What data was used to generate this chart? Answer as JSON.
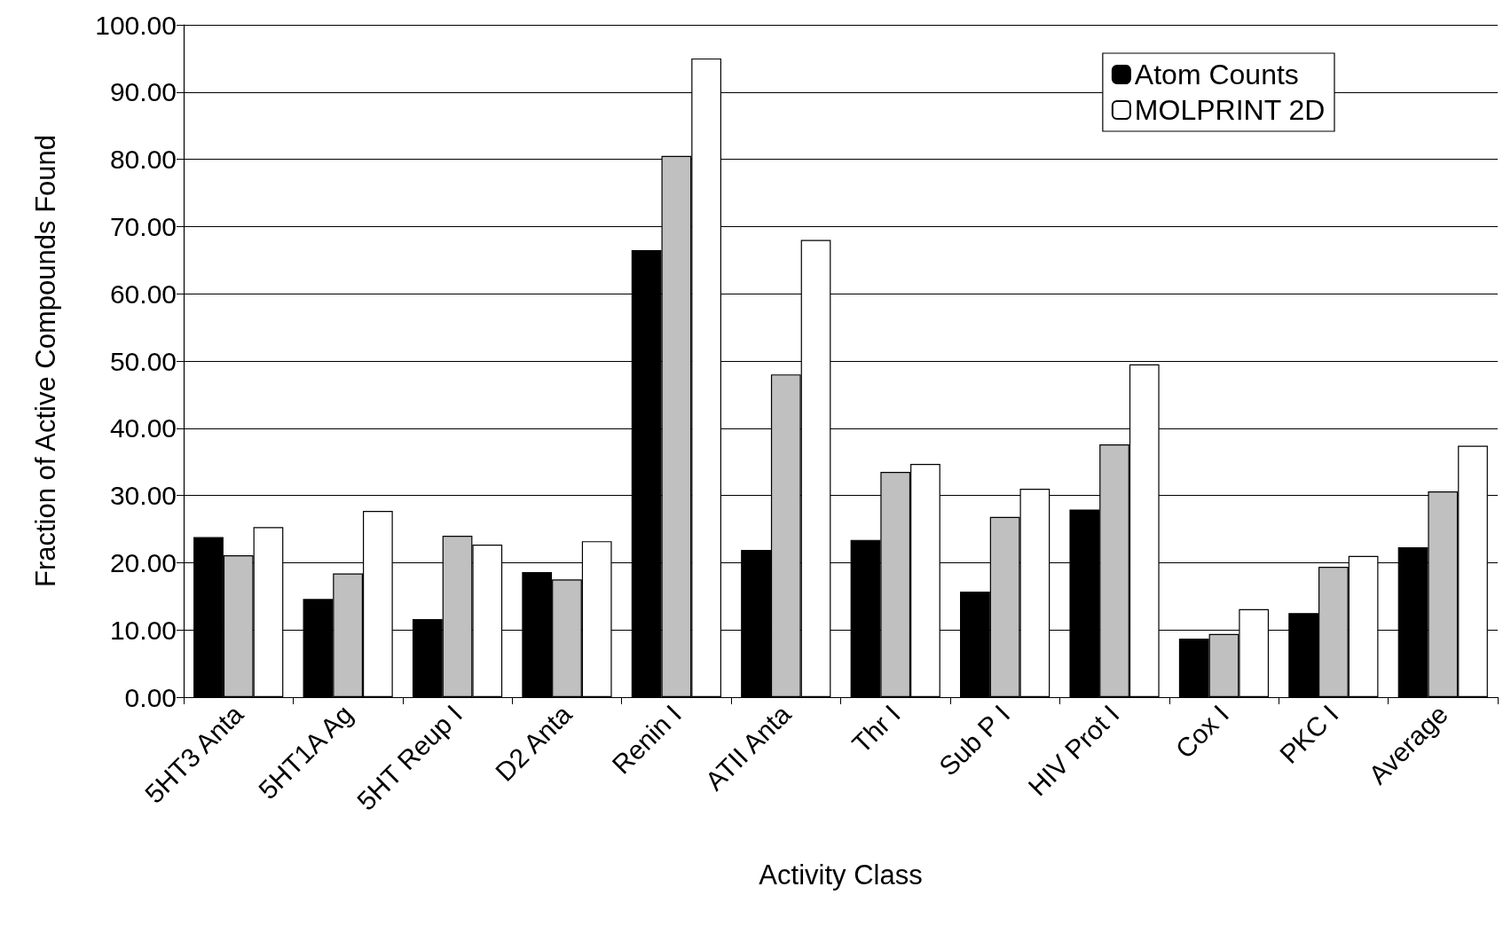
{
  "chart_data": {
    "type": "bar",
    "xlabel": "Activity Class",
    "ylabel": "Fraction of Active Compounds Found",
    "categories": [
      "5HT3 Anta",
      "5HT1A Ag",
      "5HT Reup I",
      "D2 Anta",
      "Renin I",
      "ATII Anta",
      "Thr I",
      "Sub P I",
      "HIV Prot I",
      "Cox I",
      "PKC I",
      "Average"
    ],
    "series": [
      {
        "name": "Atom Counts",
        "color": "#000000",
        "values": [
          23.8,
          14.6,
          11.6,
          18.6,
          66.5,
          21.9,
          23.4,
          15.7,
          27.9,
          8.7,
          12.5,
          22.3
        ]
      },
      {
        "color": "#c0c0c0",
        "values": [
          21.1,
          18.4,
          24.0,
          17.5,
          80.5,
          48.0,
          33.5,
          26.8,
          37.6,
          9.4,
          19.4,
          30.6
        ]
      },
      {
        "name": "MOLPRINT 2D",
        "color": "#ffffff",
        "values": [
          25.3,
          27.7,
          22.7,
          23.2,
          95.0,
          68.0,
          34.7,
          31.0,
          49.5,
          13.1,
          21.0,
          37.4
        ]
      }
    ],
    "ylim": [
      0,
      100
    ],
    "yticks": [
      {
        "value": 0,
        "label": "0.00"
      },
      {
        "value": 10,
        "label": "10.00"
      },
      {
        "value": 20,
        "label": "20.00"
      },
      {
        "value": 30,
        "label": "30.00"
      },
      {
        "value": 40,
        "label": "40.00"
      },
      {
        "value": 50,
        "label": "50.00"
      },
      {
        "value": 60,
        "label": "60.00"
      },
      {
        "value": 70,
        "label": "70.00"
      },
      {
        "value": 80,
        "label": "80.00"
      },
      {
        "value": 90,
        "label": "90.00"
      },
      {
        "value": 100,
        "label": "100.00"
      }
    ],
    "grid": "y",
    "legend": "top right"
  }
}
